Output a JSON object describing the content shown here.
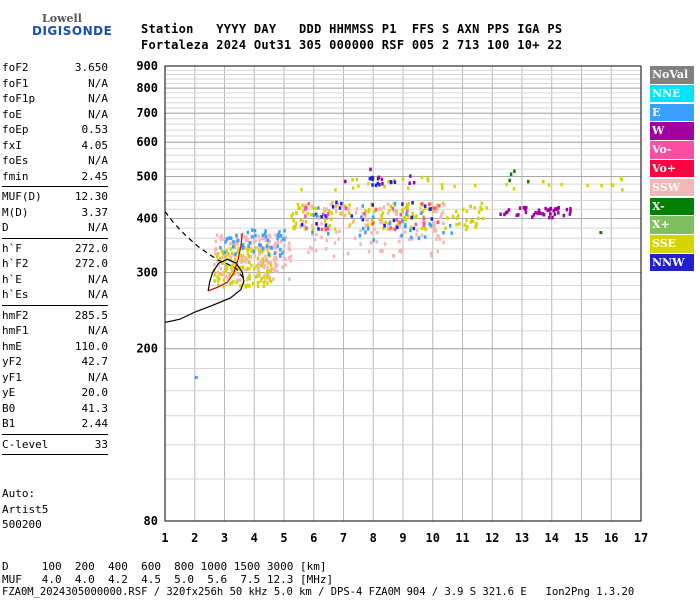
{
  "logo": {
    "brand_top": "Lowell",
    "brand_bottom": "DIGISONDE"
  },
  "header": {
    "line1": "Station   YYYY DAY   DDD HHMMSS P1  FFS S AXN PPS IGA PS",
    "line2": "Fortaleza 2024 Out31 305 000000 RSF 005 2 713 100 10+ 22"
  },
  "params": [
    {
      "label": "foF2",
      "value": "3.650"
    },
    {
      "label": "foF1",
      "value": "N/A"
    },
    {
      "label": "foF1p",
      "value": "N/A"
    },
    {
      "label": "foE",
      "value": "N/A"
    },
    {
      "label": "foEp",
      "value": "0.53"
    },
    {
      "label": "fxI",
      "value": "4.05"
    },
    {
      "label": "foEs",
      "value": "N/A"
    },
    {
      "label": "fmin",
      "value": "2.45"
    },
    {
      "sep": true
    },
    {
      "label": "MUF(D)",
      "value": "12.30"
    },
    {
      "label": "M(D)",
      "value": "3.37"
    },
    {
      "label": "D",
      "value": "N/A"
    },
    {
      "sep": true
    },
    {
      "label": "h`F",
      "value": "272.0"
    },
    {
      "label": "h`F2",
      "value": "272.0"
    },
    {
      "label": "h`E",
      "value": "N/A"
    },
    {
      "label": "h`Es",
      "value": "N/A"
    },
    {
      "sep": true
    },
    {
      "label": "hmF2",
      "value": "285.5"
    },
    {
      "label": "hmF1",
      "value": "N/A"
    },
    {
      "label": "hmE",
      "value": "110.0"
    },
    {
      "label": "yF2",
      "value": "42.7"
    },
    {
      "label": "yF1",
      "value": "N/A"
    },
    {
      "label": "yE",
      "value": "20.0"
    },
    {
      "label": "B0",
      "value": "41.3"
    },
    {
      "label": "B1",
      "value": "2.44"
    },
    {
      "sep": true
    },
    {
      "label": "C-level",
      "value": "33"
    },
    {
      "sep": true
    }
  ],
  "auto": {
    "line1": "Auto:",
    "line2": "Artist5",
    "line3": "500200"
  },
  "footer": {
    "line1": "D     100  200  400  600  800 1000 1500 3000 [km]",
    "line2": "MUF   4.0  4.0  4.2  4.5  5.0  5.6  7.5 12.3 [MHz]",
    "line3": "FZA0M_2024305000000.RSF / 320fx256h 50 kHz 5.0 km / DPS-4 FZA0M 904 / 3.9 S 321.6 E   Ion2Png 1.3.20"
  },
  "legend": [
    {
      "label": "NoVal",
      "color": "#808080"
    },
    {
      "label": "NNE",
      "color": "#00e5ff"
    },
    {
      "label": "E",
      "color": "#3aa0ff"
    },
    {
      "label": "W",
      "color": "#a000a0"
    },
    {
      "label": "Vo-",
      "color": "#ff4da6"
    },
    {
      "label": "Vo+",
      "color": "#ff0040"
    },
    {
      "label": "SSW",
      "color": "#f4b6b6"
    },
    {
      "label": "X-",
      "color": "#008000"
    },
    {
      "label": "X+",
      "color": "#7fbf5f"
    },
    {
      "label": "SSE",
      "color": "#d4d400"
    },
    {
      "label": "NNW",
      "color": "#2020d0"
    }
  ],
  "chart_data": {
    "type": "scatter",
    "title": "",
    "xlabel": "",
    "ylabel": "",
    "xlim": [
      1,
      17
    ],
    "ylim": [
      80,
      900
    ],
    "yscale": "log",
    "x_ticks": [
      1,
      2,
      3,
      4,
      5,
      6,
      7,
      8,
      9,
      10,
      11,
      12,
      13,
      14,
      15,
      16,
      17
    ],
    "y_ticks": [
      80,
      200,
      300,
      400,
      500,
      600,
      700,
      800,
      900
    ],
    "grid": true,
    "legend_position": "right",
    "clusters": [
      {
        "color": "#f4b6b6",
        "x": [
          2.6,
          5.2
        ],
        "y": [
          290,
          370
        ],
        "n": 180
      },
      {
        "color": "#d4d400",
        "x": [
          2.6,
          4.6
        ],
        "y": [
          280,
          350
        ],
        "n": 110
      },
      {
        "color": "#3aa0ff",
        "x": [
          2.8,
          5.0
        ],
        "y": [
          330,
          380
        ],
        "n": 50
      },
      {
        "color": "#d4d400",
        "x": [
          5.2,
          11.8
        ],
        "y": [
          380,
          440
        ],
        "n": 150
      },
      {
        "color": "#f4b6b6",
        "x": [
          5.5,
          10.5
        ],
        "y": [
          330,
          440
        ],
        "n": 110
      },
      {
        "color": "#ff4da6",
        "x": [
          5.5,
          10.5
        ],
        "y": [
          380,
          440
        ],
        "n": 35
      },
      {
        "color": "#2020d0",
        "x": [
          5.5,
          10.0
        ],
        "y": [
          380,
          440
        ],
        "n": 25
      },
      {
        "color": "#3aa0ff",
        "x": [
          5.5,
          10.6
        ],
        "y": [
          360,
          440
        ],
        "n": 30
      },
      {
        "color": "#a000a0",
        "x": [
          12.2,
          14.6
        ],
        "y": [
          405,
          430
        ],
        "n": 45
      },
      {
        "color": "#d4d400",
        "x": [
          5.5,
          16.5
        ],
        "y": [
          470,
          505
        ],
        "n": 32
      },
      {
        "color": "#2020d0",
        "x": [
          7.8,
          8.8
        ],
        "y": [
          480,
          505
        ],
        "n": 12
      },
      {
        "color": "#a000a0",
        "x": [
          6.5,
          9.5
        ],
        "y": [
          485,
          530
        ],
        "n": 8
      },
      {
        "color": "#008000",
        "x": [
          12.4,
          13.5
        ],
        "y": [
          490,
          520
        ],
        "n": 4
      }
    ],
    "isolated_points": [
      {
        "x": 2.0,
        "y": 173,
        "color": "#3aa0ff"
      },
      {
        "x": 15.6,
        "y": 374,
        "color": "#008000"
      },
      {
        "x": 16.3,
        "y": 495,
        "color": "#d4d400"
      }
    ],
    "profile_solid": {
      "x": [
        1.0,
        1.5,
        2.0,
        2.6,
        3.2,
        3.55,
        3.65,
        3.6,
        3.4,
        3.1,
        2.8,
        2.6,
        2.5,
        2.45
      ],
      "y": [
        230,
        234,
        243,
        252,
        262,
        274,
        286,
        300,
        315,
        322,
        315,
        300,
        285,
        272
      ]
    },
    "profile_dashed": {
      "x": [
        1.0,
        1.3,
        1.7,
        2.1,
        2.5,
        2.8,
        3.1,
        3.4,
        3.65
      ],
      "y": [
        415,
        390,
        365,
        345,
        330,
        320,
        314,
        306,
        290
      ]
    },
    "trace": {
      "x": [
        2.45,
        2.8,
        3.1,
        3.3,
        3.45,
        3.55,
        3.6
      ],
      "y": [
        272,
        278,
        285,
        298,
        320,
        345,
        370
      ]
    }
  }
}
